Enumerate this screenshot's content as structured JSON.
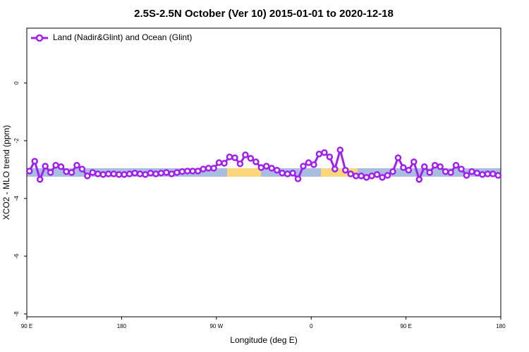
{
  "chart_data": {
    "type": "line",
    "title": "2.5S-2.5N October (Ver 10)   2015-01-01 to 2020-12-18",
    "x_label": "Longitude (deg E)",
    "y_label": "XCO2 - MLO trend (ppm)",
    "x": [
      92.5,
      97.5,
      102.5,
      107.5,
      112.5,
      117.5,
      122.5,
      127.5,
      132.5,
      137.5,
      142.5,
      147.5,
      152.5,
      157.5,
      162.5,
      167.5,
      172.5,
      177.5,
      182.5,
      187.5,
      192.5,
      197.5,
      202.5,
      207.5,
      212.5,
      217.5,
      222.5,
      227.5,
      232.5,
      237.5,
      242.5,
      247.5,
      252.5,
      257.5,
      262.5,
      267.5,
      272.5,
      277.5,
      282.5,
      287.5,
      292.5,
      297.5,
      302.5,
      307.5,
      312.5,
      317.5,
      322.5,
      327.5,
      332.5,
      337.5,
      342.5,
      347.5,
      352.5,
      357.5,
      362.5,
      367.5,
      372.5,
      377.5,
      382.5,
      387.5,
      392.5,
      397.5,
      402.5,
      407.5,
      412.5,
      417.5,
      422.5,
      427.5,
      432.5,
      437.5,
      442.5,
      447.5,
      452.5,
      457.5,
      462.5,
      467.5,
      472.5,
      477.5,
      482.5,
      487.5,
      492.5,
      497.5,
      502.5,
      507.5,
      512.5,
      517.5,
      522.5,
      527.5,
      532.5,
      537.5
    ],
    "series": [
      {
        "name": "Land (Nadir&Glint) and Ocean (Glint)",
        "color": "#a020f0",
        "values": [
          -3.05,
          -2.71,
          -3.34,
          -2.88,
          -3.1,
          -2.85,
          -2.9,
          -3.07,
          -3.1,
          -2.85,
          -2.98,
          -3.22,
          -3.1,
          -3.15,
          -3.17,
          -3.15,
          -3.15,
          -3.17,
          -3.17,
          -3.15,
          -3.12,
          -3.15,
          -3.17,
          -3.12,
          -3.15,
          -3.12,
          -3.1,
          -3.15,
          -3.1,
          -3.07,
          -3.05,
          -3.05,
          -3.05,
          -2.98,
          -2.95,
          -2.95,
          -2.76,
          -2.78,
          -2.56,
          -2.59,
          -2.8,
          -2.49,
          -2.61,
          -2.73,
          -2.93,
          -2.88,
          -2.95,
          -3.02,
          -3.12,
          -3.15,
          -3.12,
          -3.32,
          -2.88,
          -2.76,
          -2.83,
          -2.46,
          -2.41,
          -2.56,
          -2.98,
          -2.32,
          -3.02,
          -3.15,
          -3.22,
          -3.22,
          -3.27,
          -3.22,
          -3.17,
          -3.27,
          -3.2,
          -3.07,
          -2.59,
          -2.93,
          -3.02,
          -2.73,
          -3.34,
          -2.9,
          -3.1,
          -2.85,
          -2.9,
          -3.07,
          -3.1,
          -2.85,
          -2.98,
          -3.2,
          -3.07,
          -3.12,
          -3.17,
          -3.15,
          -3.15,
          -3.2
        ]
      }
    ],
    "xlim": [
      90,
      540
    ],
    "xticks": [
      {
        "value": 90,
        "label": "90 E"
      },
      180,
      {
        "value": 270,
        "label": "90 W"
      },
      {
        "value": 360,
        "label": "0"
      },
      {
        "value": 450,
        "label": "90 E"
      },
      {
        "value": 540,
        "label": "180"
      }
    ],
    "ylim": [
      -8.1,
      1.9
    ],
    "yticks": [
      0,
      -2,
      -4,
      -6,
      -8
    ],
    "legend": "top-left"
  }
}
